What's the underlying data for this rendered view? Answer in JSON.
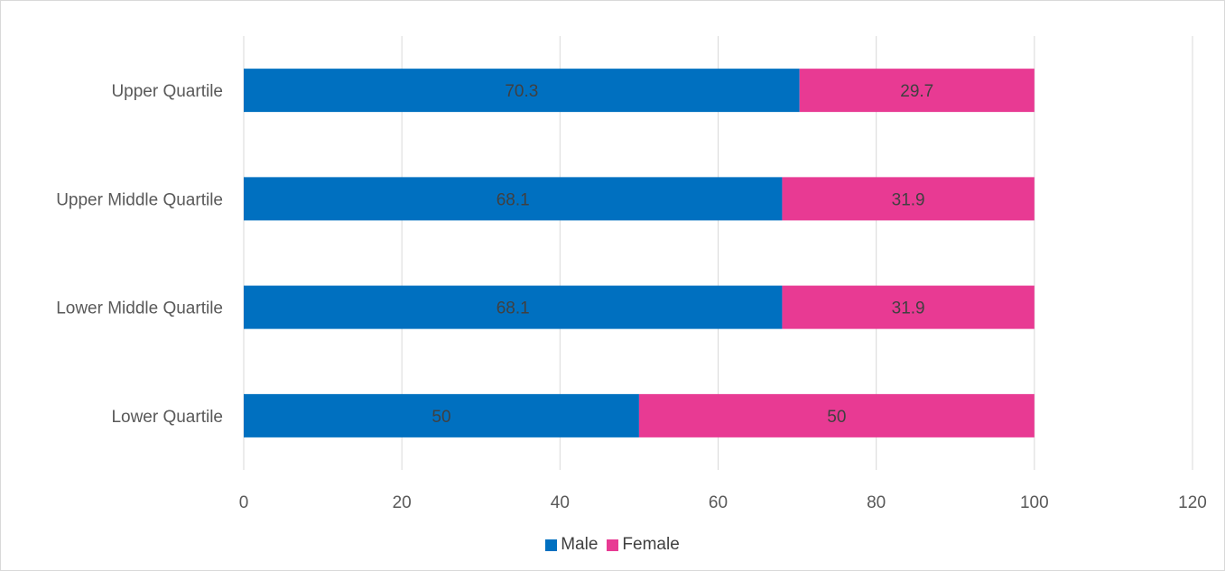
{
  "chart_data": {
    "type": "bar",
    "orientation": "horizontal",
    "stacked": true,
    "categories": [
      "Upper Quartile",
      "Upper Middle Quartile",
      "Lower Middle Quartile",
      "Lower Quartile"
    ],
    "series": [
      {
        "name": "Male",
        "color": "#0070C0",
        "values": [
          70.3,
          68.1,
          68.1,
          50
        ]
      },
      {
        "name": "Female",
        "color": "#E83A93",
        "values": [
          29.7,
          31.9,
          31.9,
          50
        ]
      }
    ],
    "xlim": [
      0,
      120
    ],
    "xticks": [
      0,
      20,
      40,
      60,
      80,
      100,
      120
    ],
    "data_labels": true,
    "grid": true,
    "legend_position": "bottom",
    "title": "",
    "xlabel": "",
    "ylabel": ""
  }
}
